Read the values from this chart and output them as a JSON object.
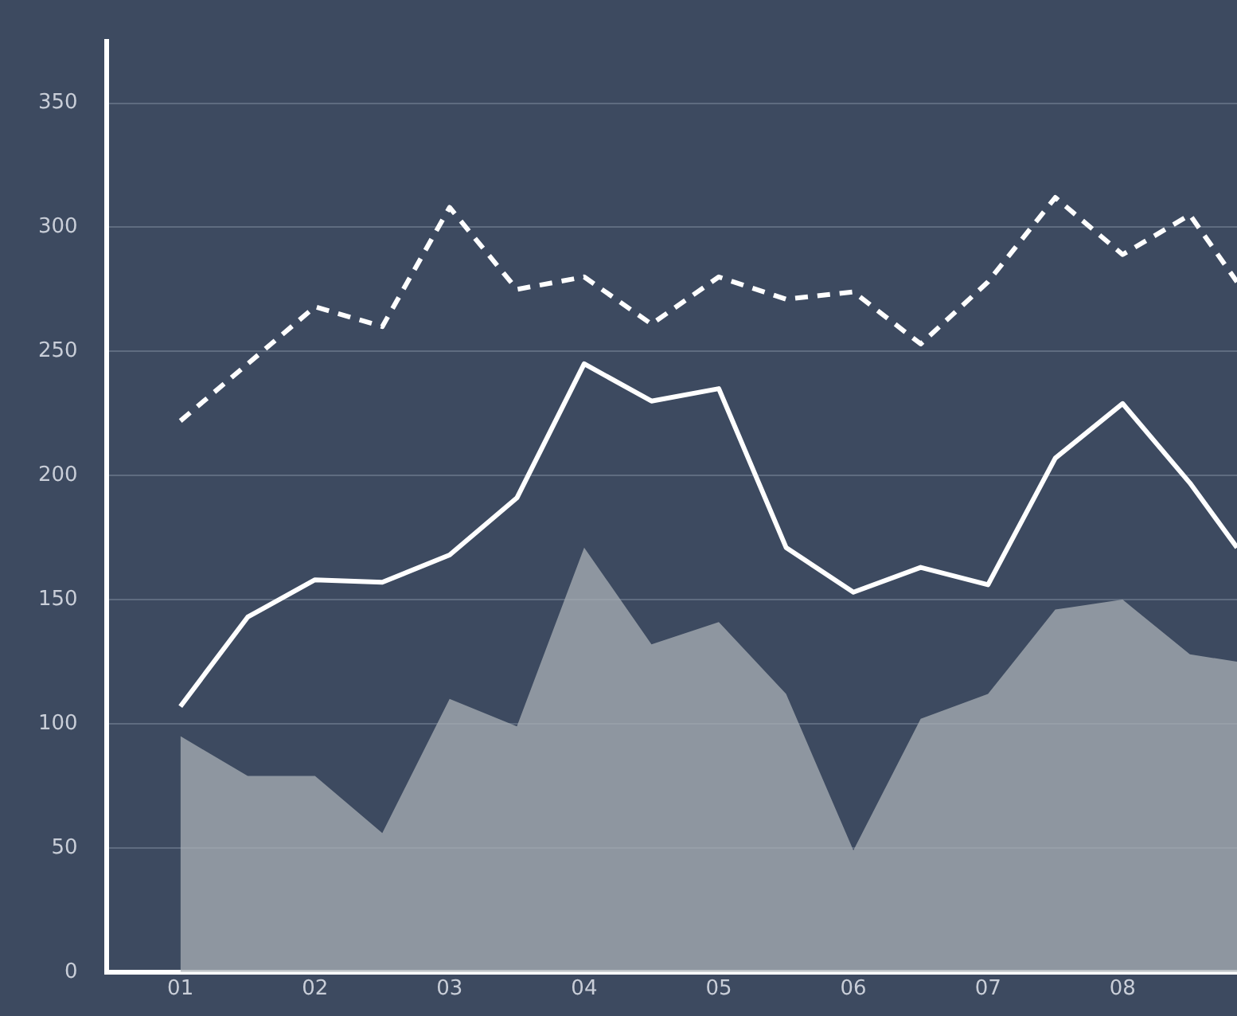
{
  "chart_data": {
    "type": "line",
    "x": [
      1,
      1.5,
      2,
      2.5,
      3,
      3.5,
      4,
      4.5,
      5,
      5.5,
      6,
      6.5,
      7,
      7.5,
      8,
      8.5,
      8.85
    ],
    "xlim": [
      0.45,
      8.85
    ],
    "xticks": [
      {
        "value": 1,
        "label": "01"
      },
      {
        "value": 2,
        "label": "02"
      },
      {
        "value": 3,
        "label": "03"
      },
      {
        "value": 4,
        "label": "04"
      },
      {
        "value": 5,
        "label": "05"
      },
      {
        "value": 6,
        "label": "06"
      },
      {
        "value": 7,
        "label": "07"
      },
      {
        "value": 8,
        "label": "08"
      }
    ],
    "ylim": [
      0,
      375
    ],
    "yticks": [
      0,
      50,
      100,
      150,
      200,
      250,
      300,
      350
    ],
    "grid": "y",
    "marker": "none",
    "series": [
      {
        "type": "area",
        "color": "#a9b0b5",
        "values": [
          95,
          79,
          79,
          56,
          110,
          99,
          171,
          132,
          141,
          112,
          49,
          102,
          112,
          146,
          150,
          128,
          125
        ]
      },
      {
        "type": "line",
        "color": "#ffffff",
        "line_style": "solid",
        "values": [
          107,
          143,
          158,
          157,
          168,
          191,
          245,
          230,
          235,
          171,
          153,
          163,
          156,
          207,
          229,
          197,
          171
        ]
      },
      {
        "type": "line",
        "color": "#ffffff",
        "line_style": "dashed",
        "values": [
          222,
          245,
          268,
          260,
          308,
          275,
          280,
          261,
          280,
          271,
          274,
          253,
          278,
          312,
          289,
          305,
          278
        ]
      }
    ]
  }
}
